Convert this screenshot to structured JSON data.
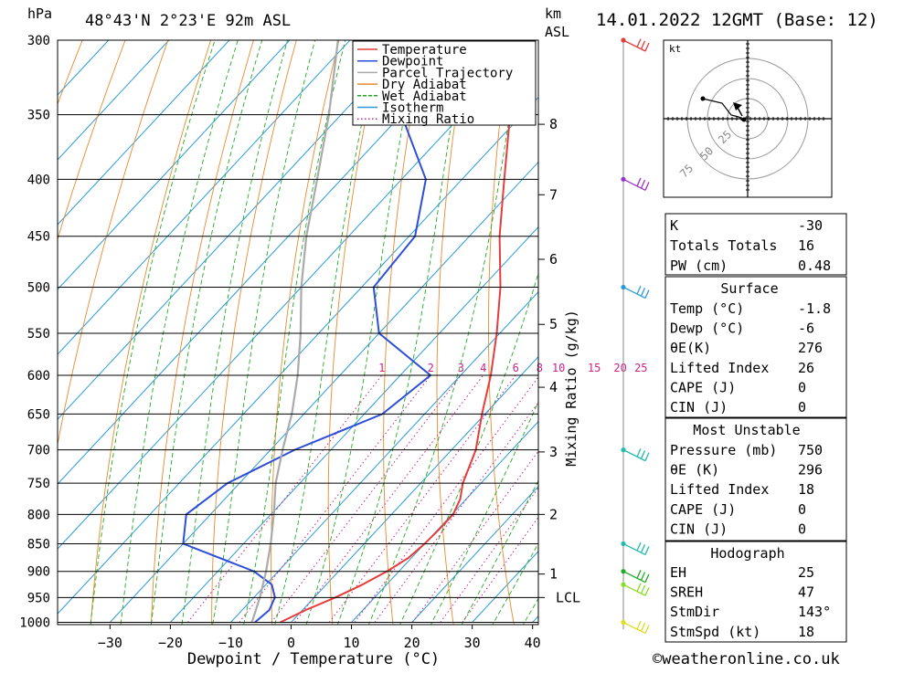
{
  "header": {
    "hpa_label": "hPa",
    "location": "48°43'N 2°23'E 92m ASL",
    "km_label": "km",
    "asl_label": "ASL",
    "datetime": "14.01.2022 12GMT (Base: 12)"
  },
  "chart_data": {
    "type": "line",
    "title": "48°43'N 2°23'E 92m ASL",
    "xlabel": "Dewpoint / Temperature (°C)",
    "ylabel": "hPa",
    "right_label": "Mixing Ratio (g/kg)",
    "xlim": [
      -40,
      40
    ],
    "ylim": [
      1000,
      300
    ],
    "x_ticks": [
      -30,
      -20,
      -10,
      0,
      10,
      20,
      30,
      40
    ],
    "pressure_levels": [
      300,
      350,
      400,
      450,
      500,
      550,
      600,
      650,
      700,
      750,
      800,
      850,
      900,
      950,
      1000
    ],
    "km_ticks": [
      {
        "label": "8",
        "p": 357
      },
      {
        "label": "7",
        "p": 413
      },
      {
        "label": "6",
        "p": 472
      },
      {
        "label": "5",
        "p": 540
      },
      {
        "label": "4",
        "p": 615
      },
      {
        "label": "3",
        "p": 703
      },
      {
        "label": "2",
        "p": 800
      },
      {
        "label": "1",
        "p": 905
      },
      {
        "label": "LCL",
        "p": 950
      }
    ],
    "mixing_ratio_labels": [
      "1",
      "2",
      "3",
      "4",
      "6",
      "8",
      "10",
      "15",
      "20",
      "25"
    ],
    "legend": {
      "position": "top-right",
      "entries": [
        {
          "name": "Temperature",
          "color": "#e63c3c",
          "style": "solid"
        },
        {
          "name": "Dewpoint",
          "color": "#2c4ed8",
          "style": "solid"
        },
        {
          "name": "Parcel Trajectory",
          "color": "#aaaaaa",
          "style": "solid"
        },
        {
          "name": "Dry Adiabat",
          "color": "#e88a2c",
          "style": "solid"
        },
        {
          "name": "Wet Adiabat",
          "color": "#22aa22",
          "style": "dashed"
        },
        {
          "name": "Isotherm",
          "color": "#2a9ad8",
          "style": "solid"
        },
        {
          "name": "Mixing Ratio",
          "color": "#cc2288",
          "style": "dotted"
        }
      ]
    },
    "series": [
      {
        "name": "Temperature",
        "color": "#e63c3c",
        "points": [
          [
            1000,
            -1.8
          ],
          [
            975,
            0.5
          ],
          [
            950,
            3.5
          ],
          [
            925,
            6
          ],
          [
            900,
            8
          ],
          [
            875,
            9.5
          ],
          [
            850,
            10
          ],
          [
            825,
            10.2
          ],
          [
            800,
            10.2
          ],
          [
            775,
            9
          ],
          [
            750,
            7
          ],
          [
            700,
            4
          ],
          [
            650,
            -0.5
          ],
          [
            600,
            -5
          ],
          [
            550,
            -10.5
          ],
          [
            500,
            -17
          ],
          [
            450,
            -25
          ],
          [
            400,
            -33
          ],
          [
            350,
            -42
          ],
          [
            300,
            -52
          ]
        ]
      },
      {
        "name": "Dewpoint",
        "color": "#2c4ed8",
        "points": [
          [
            1000,
            -6
          ],
          [
            975,
            -5.5
          ],
          [
            950,
            -6.5
          ],
          [
            925,
            -9
          ],
          [
            900,
            -14
          ],
          [
            850,
            -30
          ],
          [
            800,
            -34
          ],
          [
            750,
            -32
          ],
          [
            700,
            -26
          ],
          [
            650,
            -17
          ],
          [
            600,
            -15
          ],
          [
            550,
            -30
          ],
          [
            500,
            -38
          ],
          [
            450,
            -39
          ],
          [
            400,
            -46
          ],
          [
            350,
            -60
          ],
          [
            300,
            -70
          ]
        ]
      },
      {
        "name": "Parcel Trajectory",
        "color": "#aaaaaa",
        "points": [
          [
            1000,
            -6.5
          ],
          [
            950,
            -9
          ],
          [
            900,
            -12
          ],
          [
            850,
            -15.5
          ],
          [
            800,
            -19.5
          ],
          [
            750,
            -24
          ],
          [
            700,
            -28
          ],
          [
            650,
            -32
          ],
          [
            600,
            -37
          ],
          [
            550,
            -43
          ],
          [
            500,
            -50
          ],
          [
            450,
            -57
          ],
          [
            400,
            -64
          ],
          [
            350,
            -72
          ],
          [
            300,
            -82
          ]
        ]
      }
    ],
    "wind_barbs": [
      {
        "p": 300,
        "color": "#e63c3c"
      },
      {
        "p": 400,
        "color": "#9933cc"
      },
      {
        "p": 500,
        "color": "#2a9ad8"
      },
      {
        "p": 700,
        "color": "#22bbaa"
      },
      {
        "p": 850,
        "color": "#22bbaa"
      },
      {
        "p": 900,
        "color": "#22aa22"
      },
      {
        "p": 925,
        "color": "#88dd22"
      },
      {
        "p": 1000,
        "color": "#dddd22"
      }
    ]
  },
  "hodograph": {
    "unit": "kt",
    "ring_labels": [
      "25",
      "50",
      "75"
    ]
  },
  "indices": {
    "k_label": "K",
    "k_value": "-30",
    "tt_label": "Totals Totals",
    "tt_value": "16",
    "pw_label": "PW (cm)",
    "pw_value": "0.48"
  },
  "surface": {
    "title": "Surface",
    "rows": [
      {
        "label": "Temp (°C)",
        "value": "-1.8"
      },
      {
        "label": "Dewp (°C)",
        "value": "-6"
      },
      {
        "label": "θE(K)",
        "value": "276"
      },
      {
        "label": "Lifted Index",
        "value": "26"
      },
      {
        "label": "CAPE (J)",
        "value": "0"
      },
      {
        "label": "CIN (J)",
        "value": "0"
      }
    ]
  },
  "most_unstable": {
    "title": "Most Unstable",
    "rows": [
      {
        "label": "Pressure (mb)",
        "value": "750"
      },
      {
        "label": "θE (K)",
        "value": "296"
      },
      {
        "label": "Lifted Index",
        "value": "18"
      },
      {
        "label": "CAPE (J)",
        "value": "0"
      },
      {
        "label": "CIN (J)",
        "value": "0"
      }
    ]
  },
  "hodograph_table": {
    "title": "Hodograph",
    "rows": [
      {
        "label": "EH",
        "value": "25"
      },
      {
        "label": "SREH",
        "value": "47"
      },
      {
        "label": "StmDir",
        "value": "143°"
      },
      {
        "label": "StmSpd (kt)",
        "value": "18"
      }
    ]
  },
  "footer": {
    "copyright": "©weatheronline.co.uk"
  }
}
